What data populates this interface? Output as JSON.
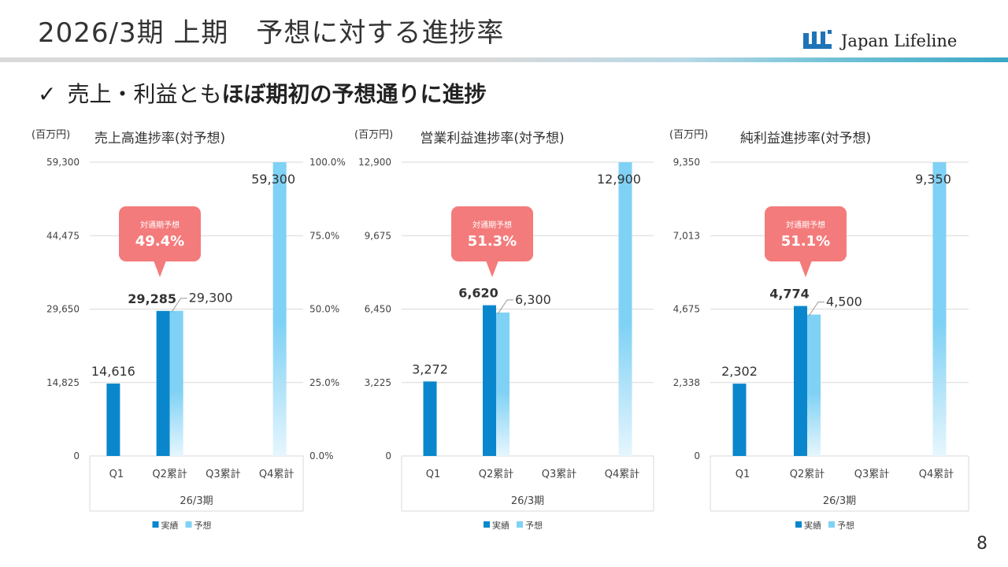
{
  "header": {
    "title": "2026/3期 上期　予想に対する進捗率",
    "logo_text": "Japan Lifeline",
    "page_number": "8"
  },
  "subtitle": {
    "check_icon": "✓",
    "normal": "売上・利益とも",
    "bold": "ほぼ期初の予想通りに進捗"
  },
  "colors": {
    "actual": "#0a87cc",
    "forecast": "#7fd1f5",
    "forecast_light": "#e6f6fd",
    "callout": "#f47b7b"
  },
  "chart_data": [
    {
      "type": "bar",
      "title": "売上高進捗率(対予想)",
      "unit_label": "(百万円)",
      "categories": [
        "Q1",
        "Q2累計",
        "Q3累計",
        "Q4累計"
      ],
      "group_label": "26/3期",
      "yticks": [
        "0",
        "14,825",
        "29,650",
        "44,475",
        "59,300"
      ],
      "ylim": [
        0,
        59300
      ],
      "y2ticks": [
        "0.0%",
        "25.0%",
        "50.0%",
        "75.0%",
        "100.0%"
      ],
      "series": [
        {
          "name": "実績",
          "values": [
            14616,
            29285,
            null,
            null
          ],
          "labels": [
            "14,616",
            "29,285",
            "",
            ""
          ]
        },
        {
          "name": "予想",
          "values": [
            null,
            29300,
            null,
            59300
          ],
          "labels": [
            "",
            "29,300",
            "",
            "59,300"
          ]
        }
      ],
      "callout": {
        "caption": "対通期予想",
        "value": "49.4%"
      }
    },
    {
      "type": "bar",
      "title": "営業利益進捗率(対予想)",
      "unit_label": "(百万円)",
      "categories": [
        "Q1",
        "Q2累計",
        "Q3累計",
        "Q4累計"
      ],
      "group_label": "26/3期",
      "yticks": [
        "0",
        "3,225",
        "6,450",
        "9,675",
        "12,900"
      ],
      "ylim": [
        0,
        12900
      ],
      "series": [
        {
          "name": "実績",
          "values": [
            3272,
            6620,
            null,
            null
          ],
          "labels": [
            "3,272",
            "6,620",
            "",
            ""
          ]
        },
        {
          "name": "予想",
          "values": [
            null,
            6300,
            null,
            12900
          ],
          "labels": [
            "",
            "6,300",
            "",
            "12,900"
          ]
        }
      ],
      "callout": {
        "caption": "対通期予想",
        "value": "51.3%"
      }
    },
    {
      "type": "bar",
      "title": "純利益進捗率(対予想)",
      "unit_label": "(百万円)",
      "categories": [
        "Q1",
        "Q2累計",
        "Q3累計",
        "Q4累計"
      ],
      "group_label": "26/3期",
      "yticks": [
        "0",
        "2,338",
        "4,675",
        "7,013",
        "9,350"
      ],
      "ylim": [
        0,
        9350
      ],
      "series": [
        {
          "name": "実績",
          "values": [
            2302,
            4774,
            null,
            null
          ],
          "labels": [
            "2,302",
            "4,774",
            "",
            ""
          ]
        },
        {
          "name": "予想",
          "values": [
            null,
            4500,
            null,
            9350
          ],
          "labels": [
            "",
            "4,500",
            "",
            "9,350"
          ]
        }
      ],
      "callout": {
        "caption": "対通期予想",
        "value": "51.1%"
      }
    }
  ]
}
